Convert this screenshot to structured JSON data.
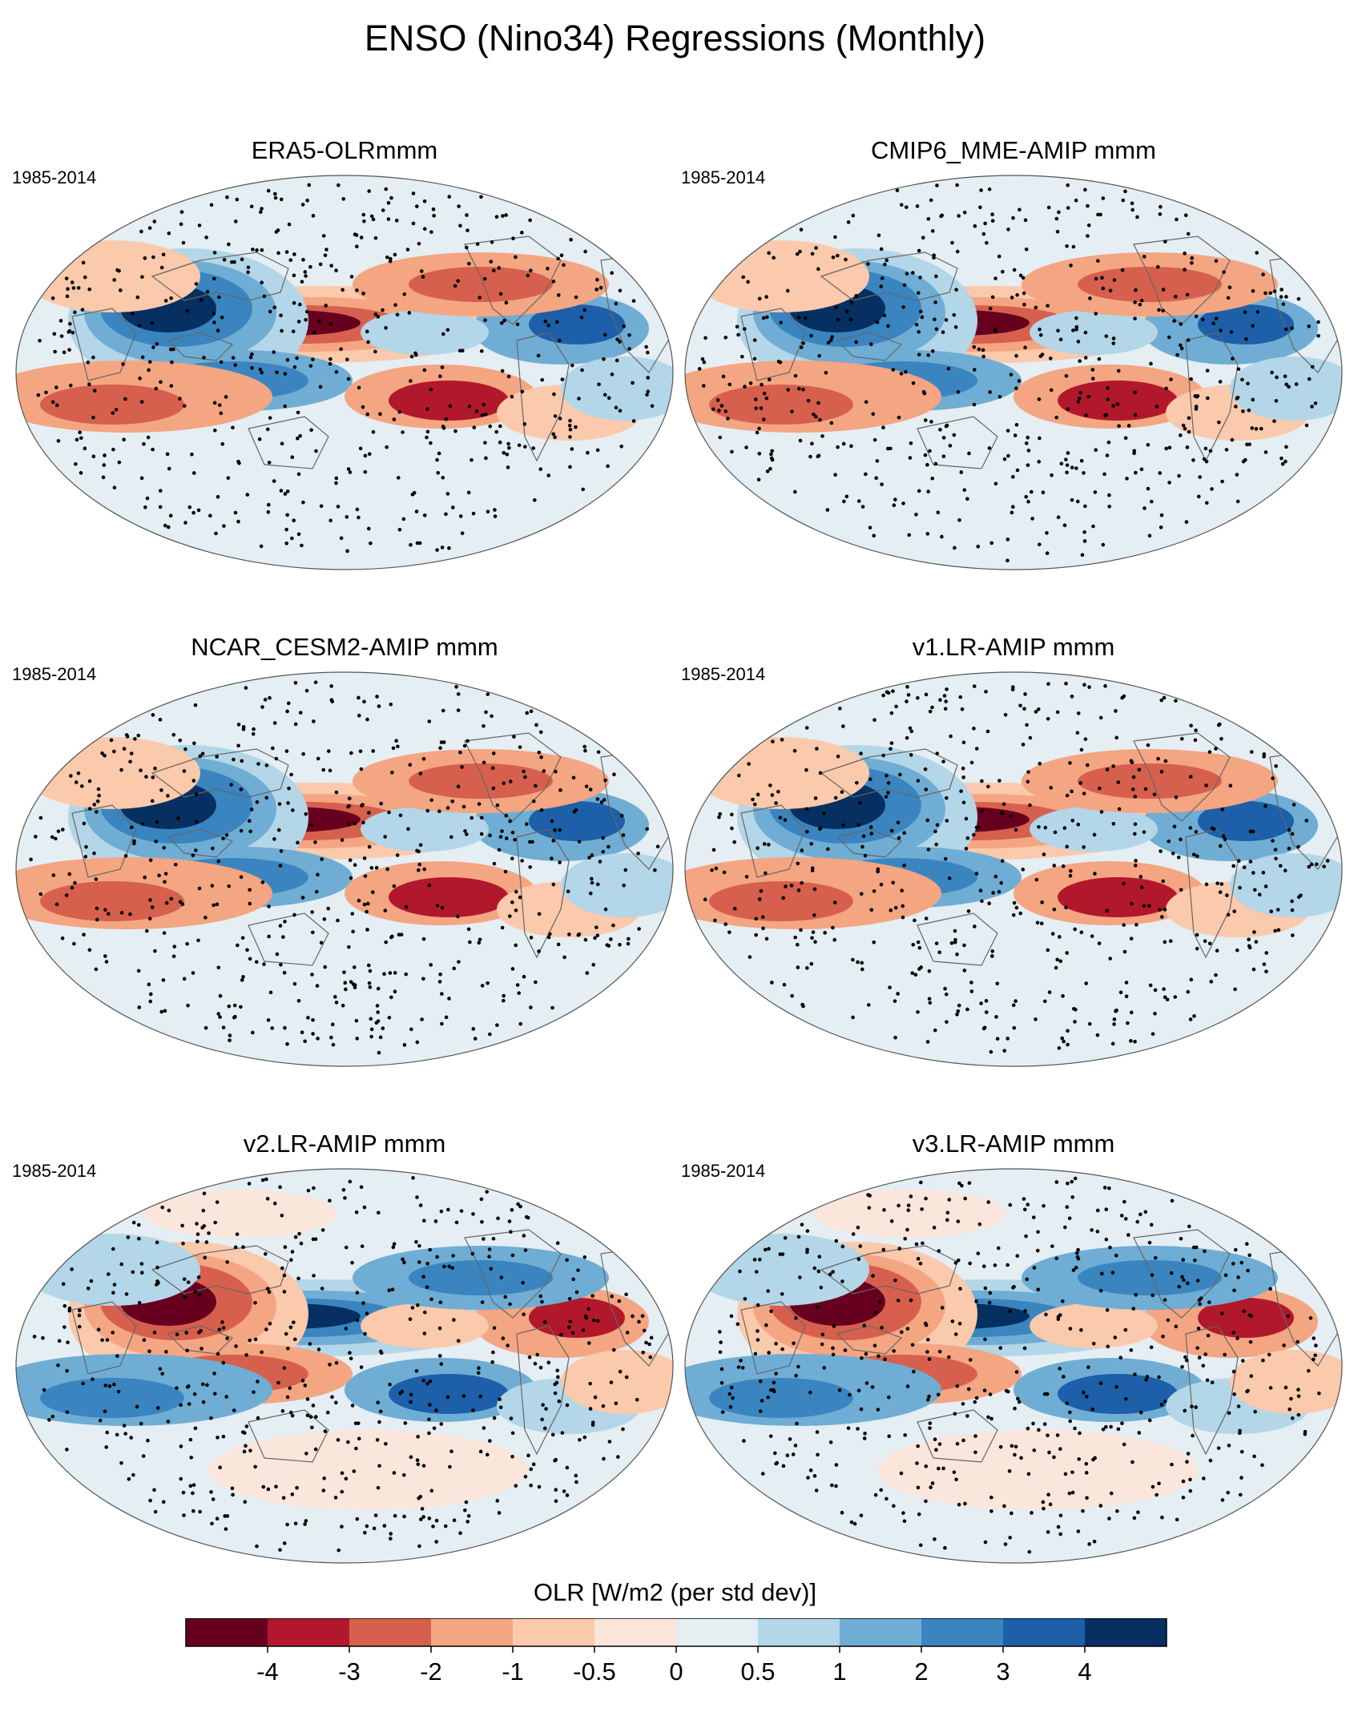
{
  "title": "ENSO (Nino34) Regressions (Monthly)",
  "chart_data": {
    "type": "heatmap",
    "projection": "global map (Robinson-like), Pacific-centered",
    "variable": "OLR regression on Nino34 index",
    "stippling": "dots mark statistically significant regions",
    "panels": [
      {
        "title": "ERA5-OLRmmm",
        "period": "1985-2014",
        "pattern_sign": 1
      },
      {
        "title": "CMIP6_MME-AMIP  mmm",
        "period": "1985-2014",
        "pattern_sign": 1
      },
      {
        "title": "NCAR_CESM2-AMIP  mmm",
        "period": "1985-2014",
        "pattern_sign": 1
      },
      {
        "title": "v1.LR-AMIP  mmm",
        "period": "1985-2014",
        "pattern_sign": 1
      },
      {
        "title": "v2.LR-AMIP  mmm",
        "period": "1985-2014",
        "pattern_sign": -1
      },
      {
        "title": "v3.LR-AMIP  mmm",
        "period": "1985-2014",
        "pattern_sign": -1
      }
    ],
    "colorbar": {
      "title": "OLR [W/m2 (per std dev)]",
      "tick_labels": [
        "-4",
        "-3",
        "-2",
        "-1",
        "-0.5",
        "0",
        "0.5",
        "1",
        "2",
        "3",
        "4"
      ],
      "colors": [
        "#67001f",
        "#b2182b",
        "#d6604d",
        "#f4a582",
        "#fbc9ab",
        "#fbe6dc",
        "#e4eef3",
        "#b3d6e8",
        "#6fadd4",
        "#3a85c0",
        "#1d5fa8",
        "#053061"
      ]
    }
  }
}
